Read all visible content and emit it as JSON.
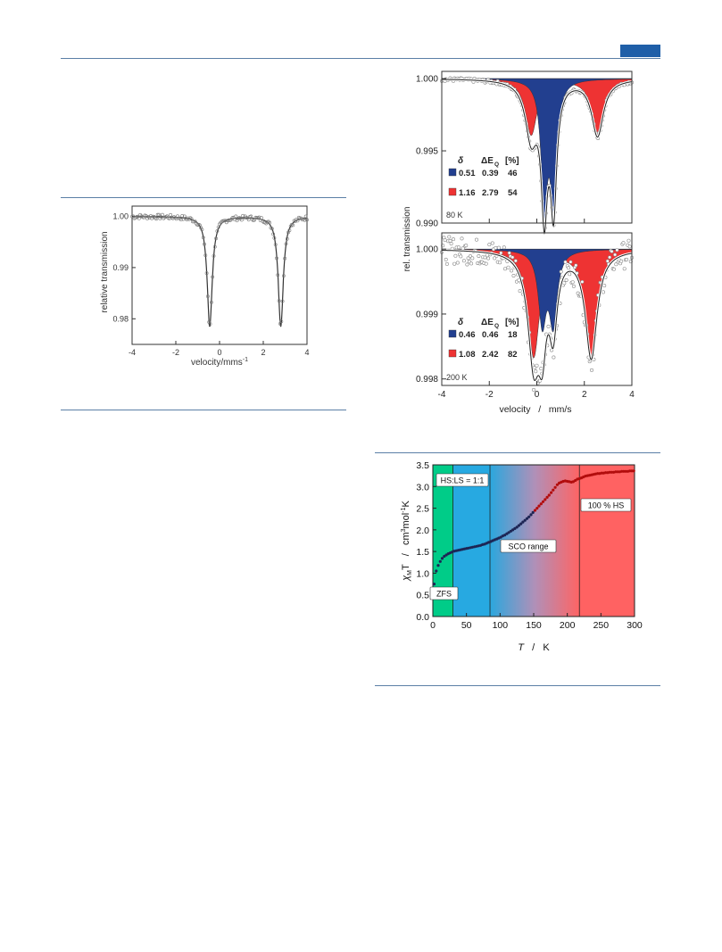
{
  "page": {
    "accent_color": "#1f5fa8",
    "rule_color": "#5b7fa6"
  },
  "figure_left": {
    "chart_data": {
      "type": "line",
      "xlabel": "velocity/mms",
      "xlabel_sup": "-1",
      "ylabel": "relative transmission",
      "xlim": [
        -4,
        4
      ],
      "ylim": [
        0.975,
        1.002
      ],
      "x_ticks": [
        "-4",
        "-2",
        "0",
        "2",
        "4"
      ],
      "y_ticks": [
        "1.00",
        "0.99",
        "0.98"
      ],
      "baseline": 1.0,
      "lines": [
        {
          "center": -0.45,
          "depth": 0.0215,
          "hwhm": 0.14
        },
        {
          "center": 2.8,
          "depth": 0.0215,
          "hwhm": 0.14
        }
      ]
    }
  },
  "figure_mossbauer": {
    "ylabel": "rel. transmission",
    "xlabel": "velocity   /   mm/s",
    "x_ticks": [
      "-4",
      "-2",
      "0",
      "2",
      "4"
    ],
    "xlim": [
      -4,
      4
    ],
    "colors": {
      "blue": "#223f8f",
      "red": "#ee3333"
    },
    "panels": [
      {
        "temperature": "80 K",
        "ylim": [
          0.99,
          1.0005
        ],
        "y_ticks": [
          "1.000",
          "0.995",
          "0.990"
        ],
        "table_header": [
          "δ",
          "ΔE",
          "Q",
          "[%]"
        ],
        "rows": [
          {
            "color": "blue",
            "delta": "0.51",
            "deq": "0.39",
            "pct": "46"
          },
          {
            "color": "red",
            "delta": "1.16",
            "deq": "2.79",
            "pct": "54"
          }
        ],
        "chart_data": {
          "type": "area",
          "series": [
            {
              "component": "blue",
              "center": 0.51,
              "splitting": 0.39,
              "depth": 0.0085,
              "hwhm": 0.16
            },
            {
              "component": "red",
              "center": 1.16,
              "splitting": 2.79,
              "depth": 0.0039,
              "hwhm": 0.3
            }
          ]
        }
      },
      {
        "temperature": "200 K",
        "ylim": [
          0.9979,
          1.00025
        ],
        "y_ticks": [
          "1.000",
          "0.999",
          "0.998"
        ],
        "table_header": [
          "δ",
          "ΔE",
          "Q",
          "[%]"
        ],
        "rows": [
          {
            "color": "blue",
            "delta": "0.46",
            "deq": "0.46",
            "pct": "18"
          },
          {
            "color": "red",
            "delta": "1.08",
            "deq": "2.42",
            "pct": "82"
          }
        ],
        "chart_data": {
          "type": "area",
          "series": [
            {
              "component": "blue",
              "center": 0.46,
              "splitting": 0.46,
              "depth": 0.0011,
              "hwhm": 0.2
            },
            {
              "component": "red",
              "center": 1.08,
              "splitting": 2.42,
              "depth": 0.00165,
              "hwhm": 0.3
            }
          ]
        }
      }
    ]
  },
  "figure_chiT": {
    "ylabel_parts": [
      "χ",
      "M",
      "T   /   cm",
      "3",
      "mol",
      "-1",
      "K"
    ],
    "xlabel_parts": [
      "T",
      "   /   K"
    ],
    "x_ticks": [
      "0",
      "50",
      "100",
      "150",
      "200",
      "250",
      "300"
    ],
    "y_ticks": [
      "0.0",
      "0.5",
      "1.0",
      "1.5",
      "2.0",
      "2.5",
      "3.0",
      "3.5"
    ],
    "xlim": [
      0,
      300
    ],
    "ylim": [
      0,
      3.5
    ],
    "regions": [
      {
        "label": "ZFS",
        "x_from": 0,
        "x_to": 30,
        "color": "#00cc88"
      },
      {
        "label": "HS:LS = 1:1",
        "x_from": 30,
        "x_to": 85,
        "color": "#27a9e1"
      },
      {
        "label": "SCO range",
        "x_from": 85,
        "x_to": 218,
        "color": "gradient"
      },
      {
        "label": "100 % HS",
        "x_from": 218,
        "x_to": 300,
        "color": "#ff6262"
      }
    ],
    "chart_data": {
      "type": "scatter",
      "x": [
        2,
        5,
        8,
        11,
        14,
        17,
        20,
        23,
        26,
        29,
        32,
        35,
        38,
        41,
        44,
        47,
        50,
        53,
        56,
        59,
        62,
        65,
        68,
        71,
        74,
        77,
        80,
        83,
        86,
        89,
        92,
        95,
        98,
        101,
        104,
        107,
        110,
        113,
        116,
        119,
        122,
        125,
        128,
        131,
        134,
        137,
        140,
        143,
        146,
        149,
        152,
        155,
        158,
        161,
        164,
        167,
        170,
        173,
        176,
        179,
        182,
        185,
        188,
        191,
        194,
        197,
        200,
        203,
        206,
        209,
        212,
        215,
        218,
        221,
        224,
        227,
        230,
        233,
        236,
        239,
        242,
        245,
        248,
        251,
        254,
        257,
        260,
        263,
        266,
        269,
        272,
        275,
        278,
        281,
        284,
        287,
        290,
        293,
        296,
        299
      ],
      "y": [
        0.75,
        1.05,
        1.18,
        1.27,
        1.34,
        1.39,
        1.42,
        1.45,
        1.47,
        1.49,
        1.51,
        1.52,
        1.53,
        1.54,
        1.55,
        1.56,
        1.57,
        1.58,
        1.59,
        1.6,
        1.61,
        1.62,
        1.63,
        1.64,
        1.66,
        1.67,
        1.69,
        1.71,
        1.73,
        1.75,
        1.77,
        1.79,
        1.81,
        1.83,
        1.86,
        1.88,
        1.91,
        1.94,
        1.97,
        2.0,
        2.03,
        2.06,
        2.1,
        2.14,
        2.18,
        2.22,
        2.26,
        2.3,
        2.35,
        2.4,
        2.45,
        2.5,
        2.55,
        2.6,
        2.65,
        2.7,
        2.75,
        2.8,
        2.86,
        2.92,
        2.98,
        3.04,
        3.08,
        3.1,
        3.12,
        3.13,
        3.12,
        3.11,
        3.1,
        3.11,
        3.14,
        3.17,
        3.18,
        3.2,
        3.22,
        3.24,
        3.25,
        3.26,
        3.27,
        3.28,
        3.29,
        3.3,
        3.3,
        3.31,
        3.31,
        3.32,
        3.32,
        3.33,
        3.33,
        3.33,
        3.34,
        3.34,
        3.34,
        3.35,
        3.35,
        3.35,
        3.35,
        3.36,
        3.36,
        3.36
      ]
    }
  }
}
